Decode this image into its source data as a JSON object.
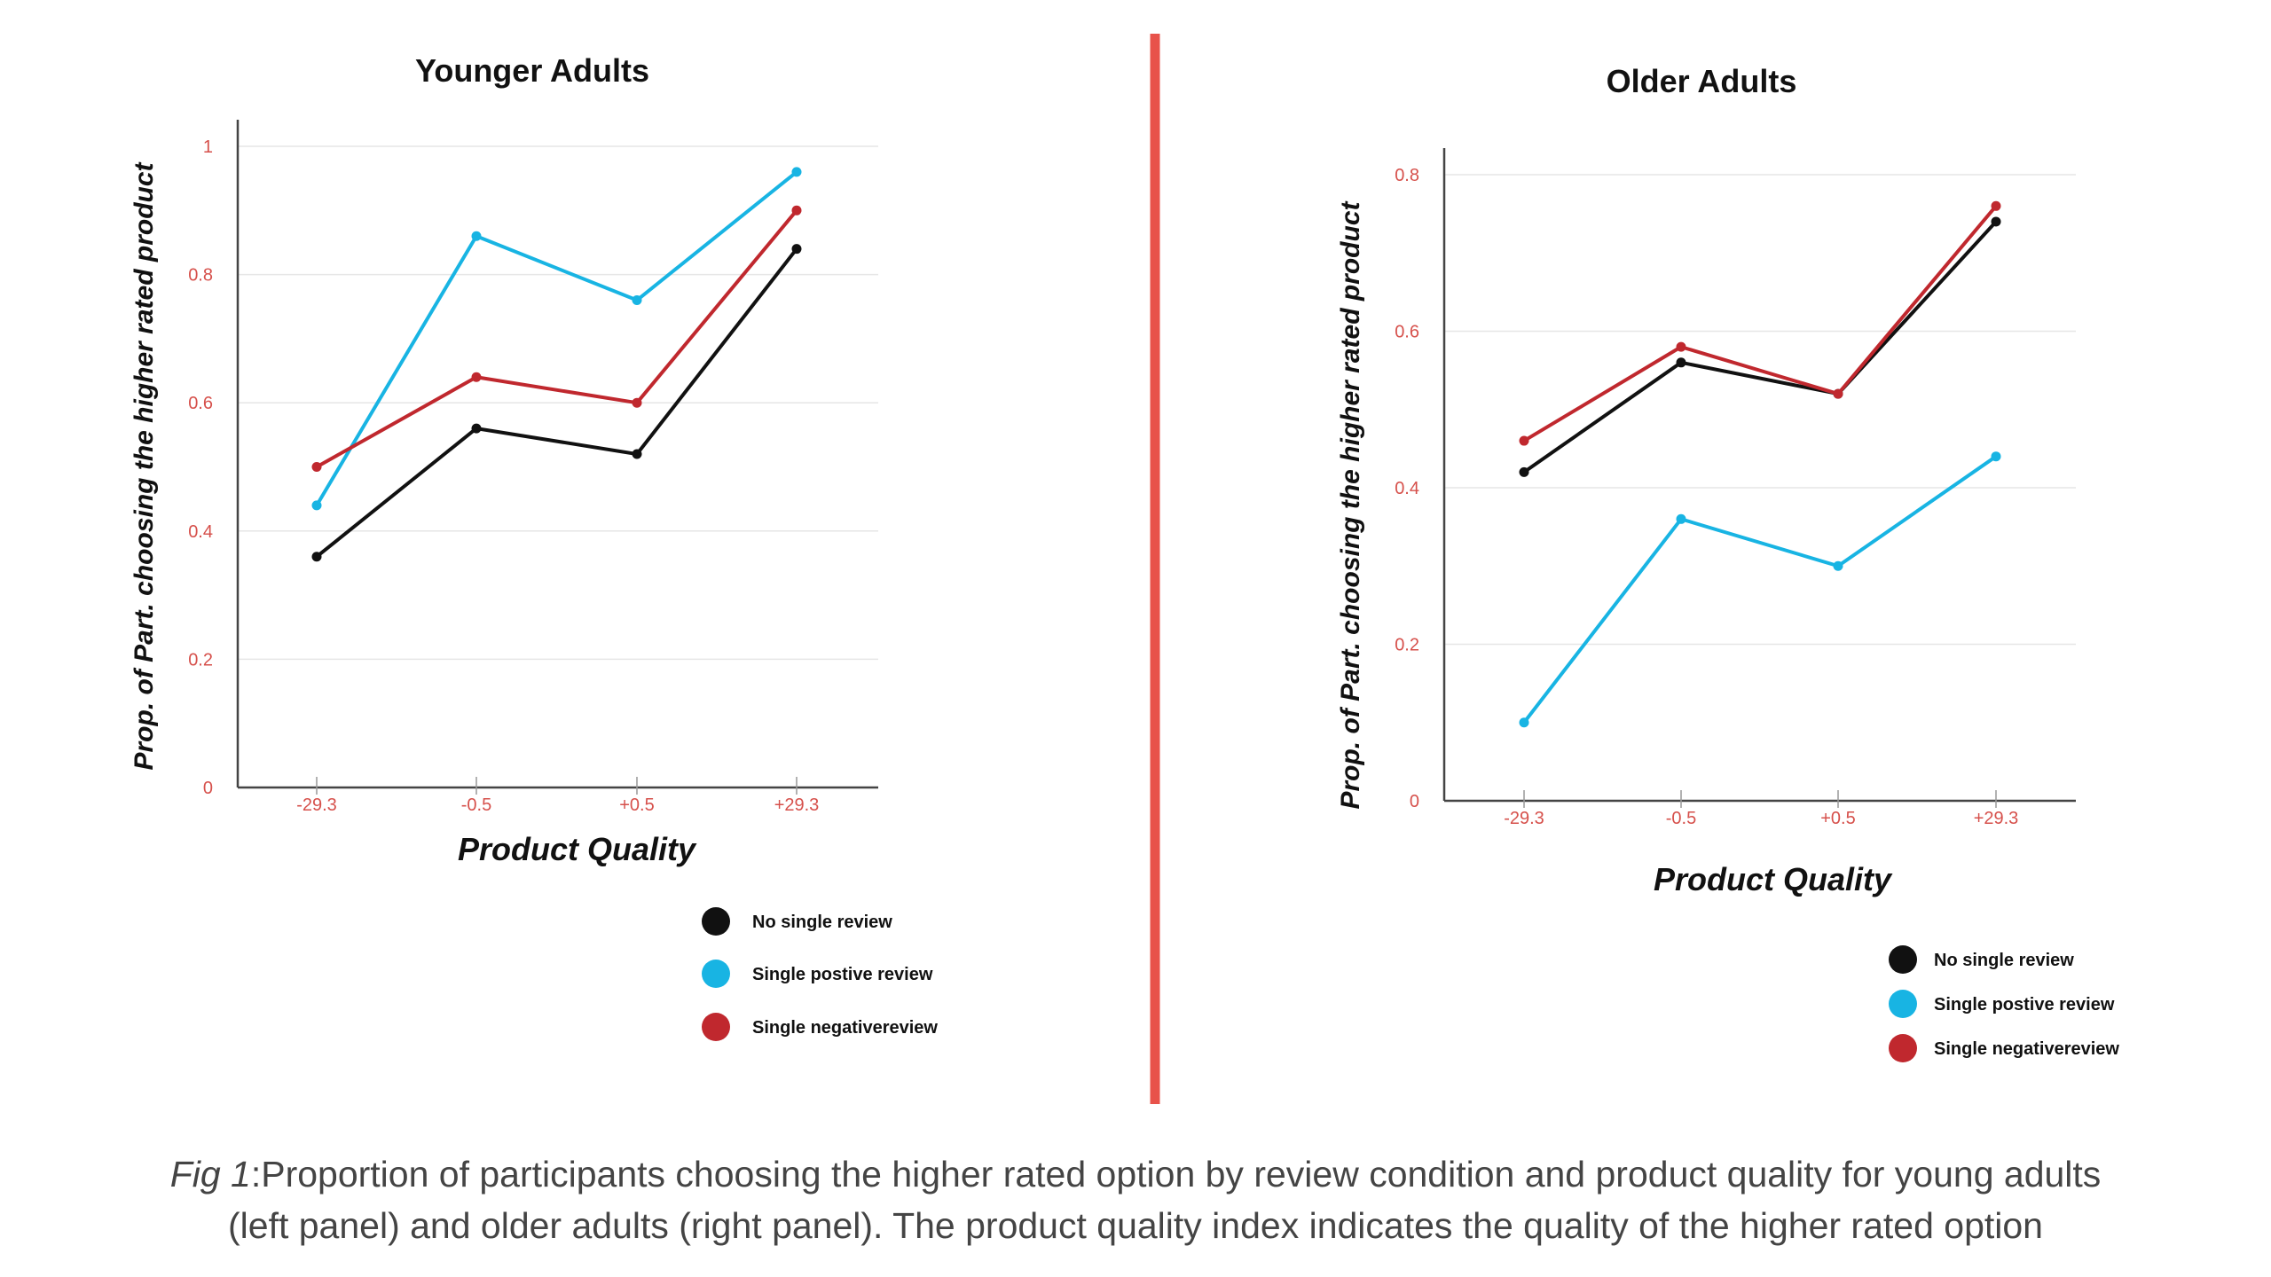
{
  "colors": {
    "divider": "#e8524a",
    "tick_label": "#d6504b",
    "grid": "#e6e6e6",
    "axis": "#444444"
  },
  "legend": [
    {
      "name": "No single review",
      "color": "#111111"
    },
    {
      "name": "Single postive review",
      "color": "#18b4e3"
    },
    {
      "name": "Single negativereview",
      "color": "#c0282e"
    }
  ],
  "chart_data": [
    {
      "type": "line",
      "title": "Younger Adults",
      "xlabel": "Product Quality",
      "ylabel": "Prop. of Part. choosing the higher rated product",
      "categories": [
        "-29.3",
        "-0.5",
        "+0.5",
        "+29.3"
      ],
      "ylim": [
        0,
        1
      ],
      "yticks": [
        "0",
        "0.2",
        "0.4",
        "0.6",
        "0.8",
        "1"
      ],
      "ytick_values": [
        0,
        0.2,
        0.4,
        0.6,
        0.8,
        1
      ],
      "grid": true,
      "legend_position": "bottom-right",
      "series": [
        {
          "name": "No single review",
          "color": "#111111",
          "values": [
            0.36,
            0.56,
            0.52,
            0.84
          ]
        },
        {
          "name": "Single postive review",
          "color": "#18b4e3",
          "values": [
            0.44,
            0.86,
            0.76,
            0.96
          ]
        },
        {
          "name": "Single negativereview",
          "color": "#c0282e",
          "values": [
            0.5,
            0.64,
            0.6,
            0.9
          ]
        }
      ]
    },
    {
      "type": "line",
      "title": "Older Adults",
      "xlabel": "Product Quality",
      "ylabel": "Prop. of Part. choosing the higher rated product",
      "categories": [
        "-29.3",
        "-0.5",
        "+0.5",
        "+29.3"
      ],
      "ylim": [
        0,
        0.8
      ],
      "yticks": [
        "0",
        "0.2",
        "0.4",
        "0.6",
        "0.8"
      ],
      "ytick_values": [
        0,
        0.2,
        0.4,
        0.6,
        0.8
      ],
      "grid": true,
      "legend_position": "bottom-right",
      "series": [
        {
          "name": "No single review",
          "color": "#111111",
          "values": [
            0.42,
            0.56,
            0.52,
            0.74
          ]
        },
        {
          "name": "Single postive review",
          "color": "#18b4e3",
          "values": [
            0.1,
            0.36,
            0.3,
            0.44
          ]
        },
        {
          "name": "Single negativereview",
          "color": "#c0282e",
          "values": [
            0.46,
            0.58,
            0.52,
            0.76
          ]
        }
      ]
    }
  ],
  "caption": {
    "label": "Fig 1",
    "line1": ":Proportion of participants choosing the higher rated option by review condition and product quality for young adults",
    "line2": "(left panel) and older adults (right panel). The product quality index indicates the quality of the higher rated option"
  }
}
